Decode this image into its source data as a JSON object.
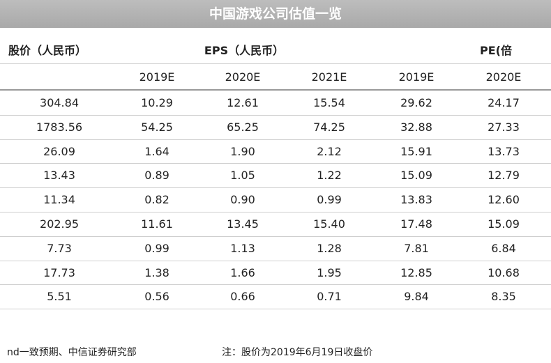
{
  "header": {
    "title": "中国游戏公司估值一览"
  },
  "table": {
    "group_headers": [
      "股价（人民币）",
      "EPS（人民币）",
      "PE(倍"
    ],
    "columns": [
      "2019E",
      "2020E",
      "2021E",
      "2019E",
      "2020E"
    ],
    "rows": [
      [
        "304.84",
        "10.29",
        "12.61",
        "15.54",
        "29.62",
        "24.17"
      ],
      [
        "1783.56",
        "54.25",
        "65.25",
        "74.25",
        "32.88",
        "27.33"
      ],
      [
        "26.09",
        "1.64",
        "1.90",
        "2.12",
        "15.91",
        "13.73"
      ],
      [
        "13.43",
        "0.89",
        "1.05",
        "1.22",
        "15.09",
        "12.79"
      ],
      [
        "11.34",
        "0.82",
        "0.90",
        "0.99",
        "13.83",
        "12.60"
      ],
      [
        "202.95",
        "11.61",
        "13.45",
        "15.40",
        "17.48",
        "15.09"
      ],
      [
        "7.73",
        "0.99",
        "1.13",
        "1.28",
        "7.81",
        "6.84"
      ],
      [
        "17.73",
        "1.38",
        "1.66",
        "1.95",
        "12.85",
        "10.68"
      ],
      [
        "5.51",
        "0.56",
        "0.66",
        "0.71",
        "9.84",
        "8.35"
      ]
    ]
  },
  "footer": {
    "source": "nd一致预期、中信证券研究部",
    "note": "注：股价为2019年6月19日收盘价"
  }
}
